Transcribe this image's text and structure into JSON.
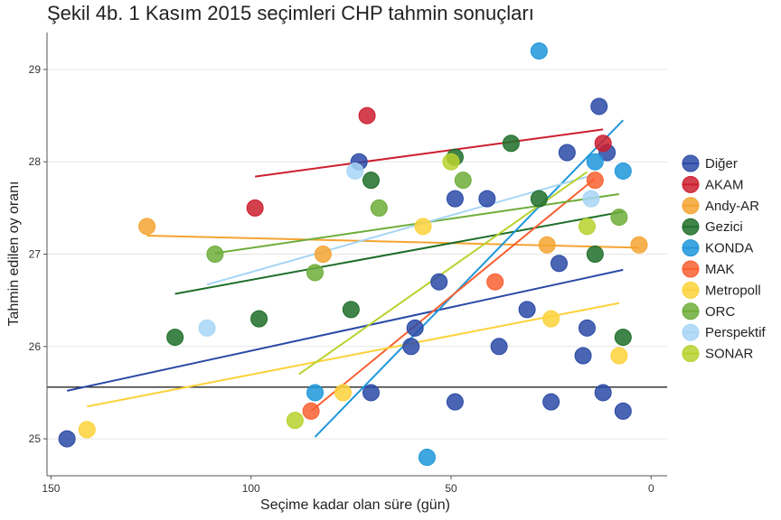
{
  "chart_data": {
    "type": "scatter",
    "title": "Şekil 4b. 1 Kasım 2015 seçimleri CHP tahmin sonuçları",
    "xlabel": "Seçime kadar olan süre (gün)",
    "ylabel": "Tahmin edilen oy oranı",
    "xlim": [
      151,
      -4
    ],
    "ylim": [
      24.6,
      29.4
    ],
    "x_ticks": [
      150,
      100,
      50,
      0
    ],
    "y_ticks": [
      25,
      26,
      27,
      28,
      29
    ],
    "x_reversed": true,
    "grid": "horizontal",
    "legend_position": "right",
    "reference_line": 25.56,
    "series": [
      {
        "name": "Diğer",
        "color": "#2a4aa6",
        "points": [
          [
            146,
            25.0
          ],
          [
            73,
            28.0
          ],
          [
            70,
            25.5
          ],
          [
            60,
            26.0
          ],
          [
            59,
            26.2
          ],
          [
            53,
            26.7
          ],
          [
            49,
            25.4
          ],
          [
            49,
            27.6
          ],
          [
            41,
            27.6
          ],
          [
            38,
            26.0
          ],
          [
            31,
            26.4
          ],
          [
            25,
            25.4
          ],
          [
            23,
            26.9
          ],
          [
            21,
            28.1
          ],
          [
            17,
            25.9
          ],
          [
            16,
            26.2
          ],
          [
            13,
            28.6
          ],
          [
            12,
            25.5
          ],
          [
            11,
            28.1
          ],
          [
            7,
            25.3
          ]
        ],
        "trend": [
          [
            146,
            25.52
          ],
          [
            7,
            26.83
          ]
        ]
      },
      {
        "name": "AKAM",
        "color": "#cc1f2e",
        "points": [
          [
            99,
            27.5
          ],
          [
            71,
            28.5
          ],
          [
            12,
            28.2
          ]
        ],
        "trend": [
          [
            99,
            27.84
          ],
          [
            12,
            28.35
          ]
        ]
      },
      {
        "name": "Andy-AR",
        "color": "#f5a431",
        "points": [
          [
            126,
            27.3
          ],
          [
            82,
            27.0
          ],
          [
            26,
            27.1
          ],
          [
            3,
            27.1
          ]
        ],
        "trend": [
          [
            126,
            27.2
          ],
          [
            3,
            27.07
          ]
        ]
      },
      {
        "name": "Gezici",
        "color": "#1f6e2a",
        "points": [
          [
            119,
            26.1
          ],
          [
            98,
            26.3
          ],
          [
            75,
            26.4
          ],
          [
            70,
            27.8
          ],
          [
            49,
            28.05
          ],
          [
            35,
            28.2
          ],
          [
            28,
            27.6
          ],
          [
            14,
            27.0
          ],
          [
            7,
            26.1
          ]
        ],
        "trend": [
          [
            119,
            26.57
          ],
          [
            7,
            27.46
          ]
        ]
      },
      {
        "name": "KONDA",
        "color": "#1f97da",
        "points": [
          [
            84,
            25.5
          ],
          [
            56,
            24.8
          ],
          [
            28,
            29.2
          ],
          [
            14,
            28.0
          ],
          [
            7,
            27.9
          ]
        ],
        "trend": [
          [
            84,
            25.02
          ],
          [
            7,
            28.45
          ]
        ]
      },
      {
        "name": "MAK",
        "color": "#f86030",
        "points": [
          [
            85,
            25.3
          ],
          [
            39,
            26.7
          ],
          [
            14,
            27.8
          ]
        ],
        "trend": [
          [
            85,
            25.3
          ],
          [
            14,
            27.82
          ]
        ]
      },
      {
        "name": "Metropoll",
        "color": "#fcd23a",
        "points": [
          [
            141,
            25.1
          ],
          [
            77,
            25.5
          ],
          [
            57,
            27.3
          ],
          [
            25,
            26.3
          ],
          [
            8,
            25.9
          ]
        ],
        "trend": [
          [
            141,
            25.35
          ],
          [
            8,
            26.47
          ]
        ]
      },
      {
        "name": "ORC",
        "color": "#6ead3a",
        "points": [
          [
            109,
            27.0
          ],
          [
            84,
            26.8
          ],
          [
            68,
            27.5
          ],
          [
            47,
            27.8
          ],
          [
            8,
            27.4
          ]
        ],
        "trend": [
          [
            109,
            27.01
          ],
          [
            8,
            27.65
          ]
        ]
      },
      {
        "name": "Perspektif",
        "color": "#a7d5f6",
        "points": [
          [
            111,
            26.2
          ],
          [
            74,
            27.9
          ],
          [
            15,
            27.6
          ]
        ],
        "trend": [
          [
            111,
            26.67
          ],
          [
            15,
            27.85
          ]
        ]
      },
      {
        "name": "SONAR",
        "color": "#b8d22e",
        "points": [
          [
            89,
            25.2
          ],
          [
            50,
            28.0
          ],
          [
            16,
            27.3
          ]
        ],
        "trend": [
          [
            88,
            25.7
          ],
          [
            16,
            27.89
          ]
        ]
      }
    ]
  }
}
